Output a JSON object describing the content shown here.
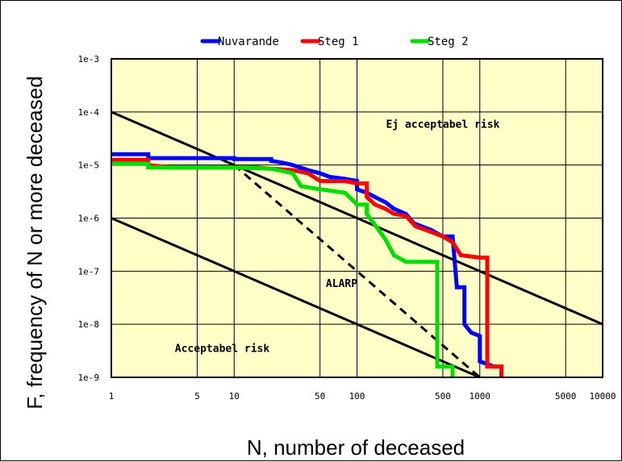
{
  "chart_data": {
    "type": "line",
    "xscale": "log",
    "yscale": "log",
    "xlim": [
      1,
      10000
    ],
    "ylim": [
      1e-09,
      0.001
    ],
    "xlabel": "N, number of deceased",
    "ylabel": "F, frequency of N or more deceased",
    "x_ticks": [
      {
        "value": 1,
        "label": "1"
      },
      {
        "value": 5,
        "label": "5"
      },
      {
        "value": 10,
        "label": "10"
      },
      {
        "value": 50,
        "label": "50"
      },
      {
        "value": 100,
        "label": "100"
      },
      {
        "value": 500,
        "label": "500"
      },
      {
        "value": 1000,
        "label": "1000"
      },
      {
        "value": 5000,
        "label": "5000"
      },
      {
        "value": 10000,
        "label": "10000"
      }
    ],
    "y_ticks": [
      {
        "value": 1e-09,
        "label": "1e-9"
      },
      {
        "value": 1e-08,
        "label": "1e-8"
      },
      {
        "value": 1e-07,
        "label": "1e-7"
      },
      {
        "value": 1e-06,
        "label": "1e-6"
      },
      {
        "value": 1e-05,
        "label": "1e-5"
      },
      {
        "value": 0.0001,
        "label": "1e-4"
      },
      {
        "value": 0.001,
        "label": "1e-3"
      }
    ],
    "grid": true,
    "legend_position": "top",
    "background_color": "#ffffc8",
    "series": [
      {
        "name": "Nuvarande",
        "color": "#0000ff",
        "step": true,
        "points": [
          [
            1,
            1.6e-05
          ],
          [
            2,
            1.6e-05
          ],
          [
            2,
            1.35e-05
          ],
          [
            10,
            1.35e-05
          ],
          [
            10,
            1.3e-05
          ],
          [
            20,
            1.3e-05
          ],
          [
            20,
            1.2e-05
          ],
          [
            25,
            1.1e-05
          ],
          [
            30,
            1e-05
          ],
          [
            40,
            8e-06
          ],
          [
            50,
            7e-06
          ],
          [
            60,
            6e-06
          ],
          [
            80,
            5.5e-06
          ],
          [
            100,
            5e-06
          ],
          [
            100,
            3.5e-06
          ],
          [
            120,
            3e-06
          ],
          [
            140,
            2.5e-06
          ],
          [
            170,
            2e-06
          ],
          [
            200,
            1.5e-06
          ],
          [
            250,
            1.2e-06
          ],
          [
            290,
            8e-07
          ],
          [
            400,
            6e-07
          ],
          [
            500,
            4.5e-07
          ],
          [
            600,
            4.5e-07
          ],
          [
            650,
            5e-08
          ],
          [
            750,
            5e-08
          ],
          [
            750,
            1e-08
          ],
          [
            850,
            7e-09
          ],
          [
            1000,
            6e-09
          ],
          [
            1000,
            2e-09
          ],
          [
            1300,
            1.6e-09
          ],
          [
            1500,
            1.6e-09
          ],
          [
            1500,
            1e-09
          ]
        ]
      },
      {
        "name": "Steg 1",
        "color": "#ff0000",
        "step": true,
        "points": [
          [
            1,
            1.25e-05
          ],
          [
            2,
            1.25e-05
          ],
          [
            2,
            1e-05
          ],
          [
            3,
            9e-06
          ],
          [
            15,
            9e-06
          ],
          [
            20,
            8.5e-06
          ],
          [
            30,
            8e-06
          ],
          [
            40,
            7e-06
          ],
          [
            50,
            5e-06
          ],
          [
            80,
            5e-06
          ],
          [
            100,
            4.5e-06
          ],
          [
            120,
            4.5e-06
          ],
          [
            120,
            2.5e-06
          ],
          [
            140,
            1.8e-06
          ],
          [
            170,
            1.5e-06
          ],
          [
            200,
            1.2e-06
          ],
          [
            250,
            1.1e-06
          ],
          [
            300,
            7e-07
          ],
          [
            400,
            5.5e-07
          ],
          [
            500,
            4.5e-07
          ],
          [
            600,
            3.5e-07
          ],
          [
            700,
            2e-07
          ],
          [
            1000,
            1.8e-07
          ],
          [
            1150,
            1.8e-07
          ],
          [
            1150,
            1.6e-09
          ],
          [
            1500,
            1.6e-09
          ],
          [
            1500,
            1e-09
          ]
        ]
      },
      {
        "name": "Steg 2",
        "color": "#00dd00",
        "step": true,
        "points": [
          [
            1,
            1.05e-05
          ],
          [
            2,
            1.05e-05
          ],
          [
            2,
            9e-06
          ],
          [
            10,
            9e-06
          ],
          [
            20,
            8.5e-06
          ],
          [
            30,
            7e-06
          ],
          [
            35,
            4e-06
          ],
          [
            50,
            3.5e-06
          ],
          [
            80,
            3e-06
          ],
          [
            100,
            1.8e-06
          ],
          [
            120,
            1.8e-06
          ],
          [
            120,
            1.2e-06
          ],
          [
            150,
            6e-07
          ],
          [
            170,
            4e-07
          ],
          [
            200,
            2e-07
          ],
          [
            250,
            1.5e-07
          ],
          [
            400,
            1.5e-07
          ],
          [
            450,
            1.5e-07
          ],
          [
            450,
            1.6e-09
          ],
          [
            600,
            1.6e-09
          ],
          [
            600,
            1e-09
          ]
        ]
      }
    ],
    "reference_lines": [
      {
        "style": "solid",
        "from": [
          1,
          0.0001
        ],
        "to": [
          10000,
          1e-08
        ]
      },
      {
        "style": "solid",
        "from": [
          1,
          1e-06
        ],
        "to": [
          1000,
          1e-09
        ]
      },
      {
        "style": "dashed",
        "from": [
          10,
          1e-05
        ],
        "to": [
          1000,
          1e-09
        ]
      }
    ],
    "annotations": [
      {
        "text": "Ej acceptabel risk",
        "x": 500,
        "y": 5e-05
      },
      {
        "text": "ALARP",
        "x": 75,
        "y": 5e-08
      },
      {
        "text": "Acceptabel risk",
        "x": 8,
        "y": 3e-09
      }
    ]
  }
}
